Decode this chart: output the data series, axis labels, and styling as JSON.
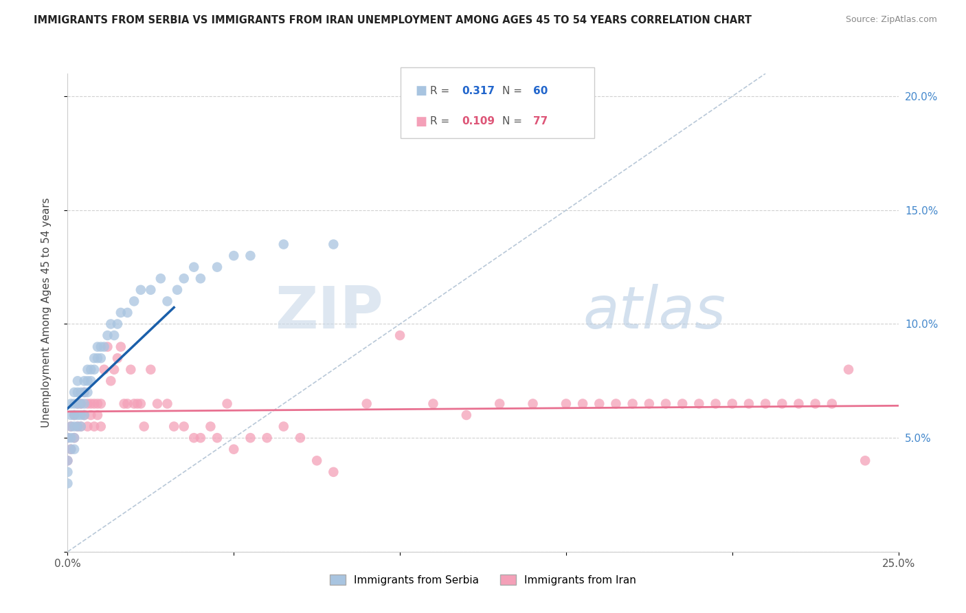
{
  "title": "IMMIGRANTS FROM SERBIA VS IMMIGRANTS FROM IRAN UNEMPLOYMENT AMONG AGES 45 TO 54 YEARS CORRELATION CHART",
  "source": "Source: ZipAtlas.com",
  "ylabel": "Unemployment Among Ages 45 to 54 years",
  "xlim": [
    0.0,
    0.25
  ],
  "ylim": [
    0.0,
    0.21
  ],
  "xticks": [
    0.0,
    0.05,
    0.1,
    0.15,
    0.2,
    0.25
  ],
  "xticklabels": [
    "0.0%",
    "",
    "",
    "",
    "",
    "25.0%"
  ],
  "yticks_right": [
    0.0,
    0.05,
    0.1,
    0.15,
    0.2
  ],
  "yticklabels_right": [
    "",
    "5.0%",
    "10.0%",
    "15.0%",
    "20.0%"
  ],
  "serbia_R": 0.317,
  "serbia_N": 60,
  "iran_R": 0.109,
  "iran_N": 77,
  "serbia_color": "#a8c4e0",
  "iran_color": "#f4a0b8",
  "serbia_line_color": "#1a5faa",
  "iran_line_color": "#e87090",
  "diagonal_color": "#b8c8d8",
  "watermark_zip": "ZIP",
  "watermark_atlas": "atlas",
  "legend_label_serbia": "Immigrants from Serbia",
  "legend_label_iran": "Immigrants from Iran",
  "serbia_x": [
    0.0,
    0.0,
    0.0,
    0.0,
    0.001,
    0.001,
    0.001,
    0.001,
    0.001,
    0.002,
    0.002,
    0.002,
    0.002,
    0.002,
    0.002,
    0.003,
    0.003,
    0.003,
    0.003,
    0.003,
    0.004,
    0.004,
    0.004,
    0.004,
    0.005,
    0.005,
    0.005,
    0.005,
    0.006,
    0.006,
    0.006,
    0.007,
    0.007,
    0.008,
    0.008,
    0.009,
    0.009,
    0.01,
    0.01,
    0.011,
    0.012,
    0.013,
    0.014,
    0.015,
    0.016,
    0.018,
    0.02,
    0.022,
    0.025,
    0.028,
    0.03,
    0.033,
    0.035,
    0.038,
    0.04,
    0.045,
    0.05,
    0.055,
    0.065,
    0.08
  ],
  "serbia_y": [
    0.05,
    0.04,
    0.035,
    0.03,
    0.065,
    0.06,
    0.055,
    0.05,
    0.045,
    0.07,
    0.065,
    0.06,
    0.055,
    0.05,
    0.045,
    0.075,
    0.07,
    0.065,
    0.06,
    0.055,
    0.07,
    0.065,
    0.06,
    0.055,
    0.075,
    0.07,
    0.065,
    0.06,
    0.08,
    0.075,
    0.07,
    0.08,
    0.075,
    0.085,
    0.08,
    0.09,
    0.085,
    0.09,
    0.085,
    0.09,
    0.095,
    0.1,
    0.095,
    0.1,
    0.105,
    0.105,
    0.11,
    0.115,
    0.115,
    0.12,
    0.11,
    0.115,
    0.12,
    0.125,
    0.12,
    0.125,
    0.13,
    0.13,
    0.135,
    0.135
  ],
  "iran_x": [
    0.0,
    0.0,
    0.001,
    0.001,
    0.002,
    0.002,
    0.003,
    0.003,
    0.004,
    0.004,
    0.005,
    0.005,
    0.006,
    0.006,
    0.007,
    0.007,
    0.008,
    0.008,
    0.009,
    0.009,
    0.01,
    0.01,
    0.011,
    0.012,
    0.013,
    0.014,
    0.015,
    0.016,
    0.017,
    0.018,
    0.019,
    0.02,
    0.021,
    0.022,
    0.023,
    0.025,
    0.027,
    0.03,
    0.032,
    0.035,
    0.038,
    0.04,
    0.043,
    0.045,
    0.048,
    0.05,
    0.055,
    0.06,
    0.065,
    0.07,
    0.075,
    0.08,
    0.09,
    0.1,
    0.11,
    0.12,
    0.13,
    0.14,
    0.15,
    0.16,
    0.17,
    0.18,
    0.19,
    0.2,
    0.21,
    0.22,
    0.23,
    0.24,
    0.235,
    0.225,
    0.215,
    0.205,
    0.195,
    0.185,
    0.175,
    0.165,
    0.155
  ],
  "iran_y": [
    0.05,
    0.04,
    0.055,
    0.045,
    0.06,
    0.05,
    0.065,
    0.055,
    0.065,
    0.055,
    0.07,
    0.06,
    0.065,
    0.055,
    0.065,
    0.06,
    0.065,
    0.055,
    0.065,
    0.06,
    0.065,
    0.055,
    0.08,
    0.09,
    0.075,
    0.08,
    0.085,
    0.09,
    0.065,
    0.065,
    0.08,
    0.065,
    0.065,
    0.065,
    0.055,
    0.08,
    0.065,
    0.065,
    0.055,
    0.055,
    0.05,
    0.05,
    0.055,
    0.05,
    0.065,
    0.045,
    0.05,
    0.05,
    0.055,
    0.05,
    0.04,
    0.035,
    0.065,
    0.095,
    0.065,
    0.06,
    0.065,
    0.065,
    0.065,
    0.065,
    0.065,
    0.065,
    0.065,
    0.065,
    0.065,
    0.065,
    0.065,
    0.04,
    0.08,
    0.065,
    0.065,
    0.065,
    0.065,
    0.065,
    0.065,
    0.065,
    0.065
  ]
}
